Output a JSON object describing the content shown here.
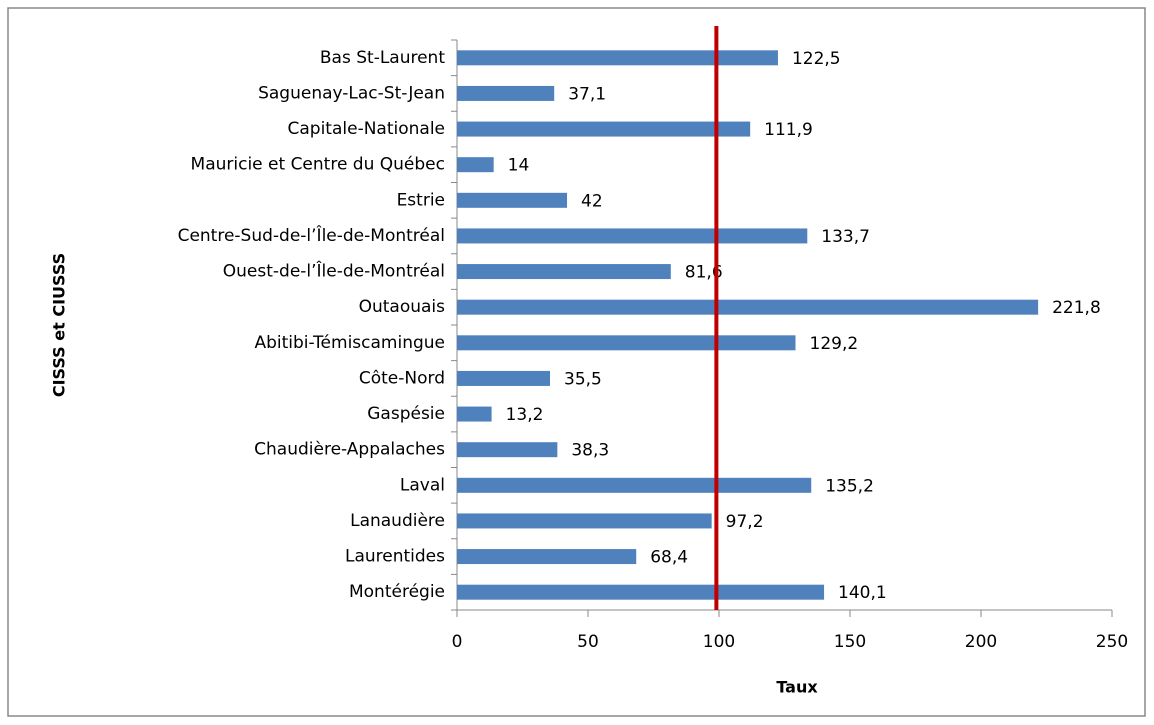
{
  "chart_data": {
    "type": "barh",
    "x_label": "Taux",
    "y_label": "CISSS et CIUSSS",
    "categories": [
      "Bas St-Laurent",
      "Saguenay-Lac-St-Jean",
      "Capitale-Nationale",
      "Mauricie et Centre du Québec",
      "Estrie",
      "Centre-Sud-de-l’Île-de-Montréal",
      "Ouest-de-l’Île-de-Montréal",
      "Outaouais",
      "Abitibi-Témiscamingue",
      "Côte-Nord",
      "Gaspésie",
      "Chaudière-Appalaches",
      "Laval",
      "Lanaudière",
      "Laurentides",
      "Montérégie"
    ],
    "values": [
      122.5,
      37.1,
      111.9,
      14,
      42,
      133.7,
      81.6,
      221.8,
      129.2,
      35.5,
      13.2,
      38.3,
      135.2,
      97.2,
      68.4,
      140.1
    ],
    "value_labels": [
      "122,5",
      "37,1",
      "111,9",
      "14",
      "42",
      "133,7",
      "81,6",
      "221,8",
      "129,2",
      "35,5",
      "13,2",
      "38,3",
      "135,2",
      "97,2",
      "68,4",
      "140,1"
    ],
    "color": "#4f81bd",
    "xlim": [
      0,
      250
    ],
    "xticks": [
      0,
      50,
      100,
      150,
      200,
      250
    ],
    "reference_line": {
      "value": 99,
      "color": "#c00000"
    },
    "grid": false
  }
}
